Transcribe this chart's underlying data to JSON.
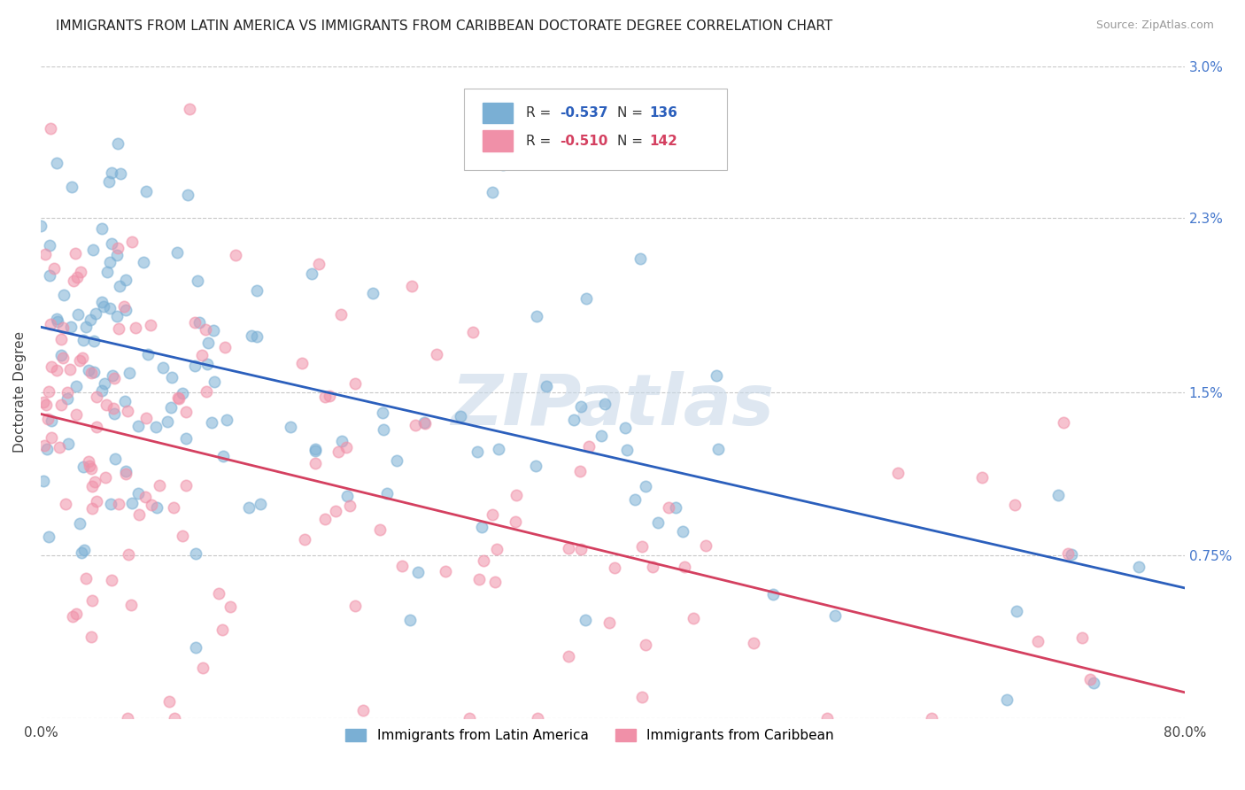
{
  "title": "IMMIGRANTS FROM LATIN AMERICA VS IMMIGRANTS FROM CARIBBEAN DOCTORATE DEGREE CORRELATION CHART",
  "source": "Source: ZipAtlas.com",
  "ylabel": "Doctorate Degree",
  "series": [
    {
      "name": "Immigrants from Latin America",
      "color": "#7aafd4",
      "line_color": "#2b5fbc",
      "R": -0.537,
      "N": 136,
      "slope": -0.015,
      "intercept": 0.018
    },
    {
      "name": "Immigrants from Caribbean",
      "color": "#f090a8",
      "line_color": "#d44060",
      "R": -0.51,
      "N": 142,
      "slope": -0.016,
      "intercept": 0.014
    }
  ],
  "xlim": [
    0.0,
    0.8
  ],
  "ylim": [
    0.0,
    0.03
  ],
  "ytick_vals": [
    0.0,
    0.0075,
    0.015,
    0.023,
    0.03
  ],
  "ytick_labels": [
    "",
    "0.75%",
    "1.5%",
    "2.3%",
    "3.0%"
  ],
  "watermark": "ZIPatlas",
  "background_color": "#ffffff",
  "grid_color": "#c8c8c8",
  "title_fontsize": 11,
  "axis_label_color": "#4477cc",
  "legend_R_color_blue": "#2b5fbc",
  "legend_R_color_pink": "#d44060",
  "legend_N_color": "#2b5fbc"
}
